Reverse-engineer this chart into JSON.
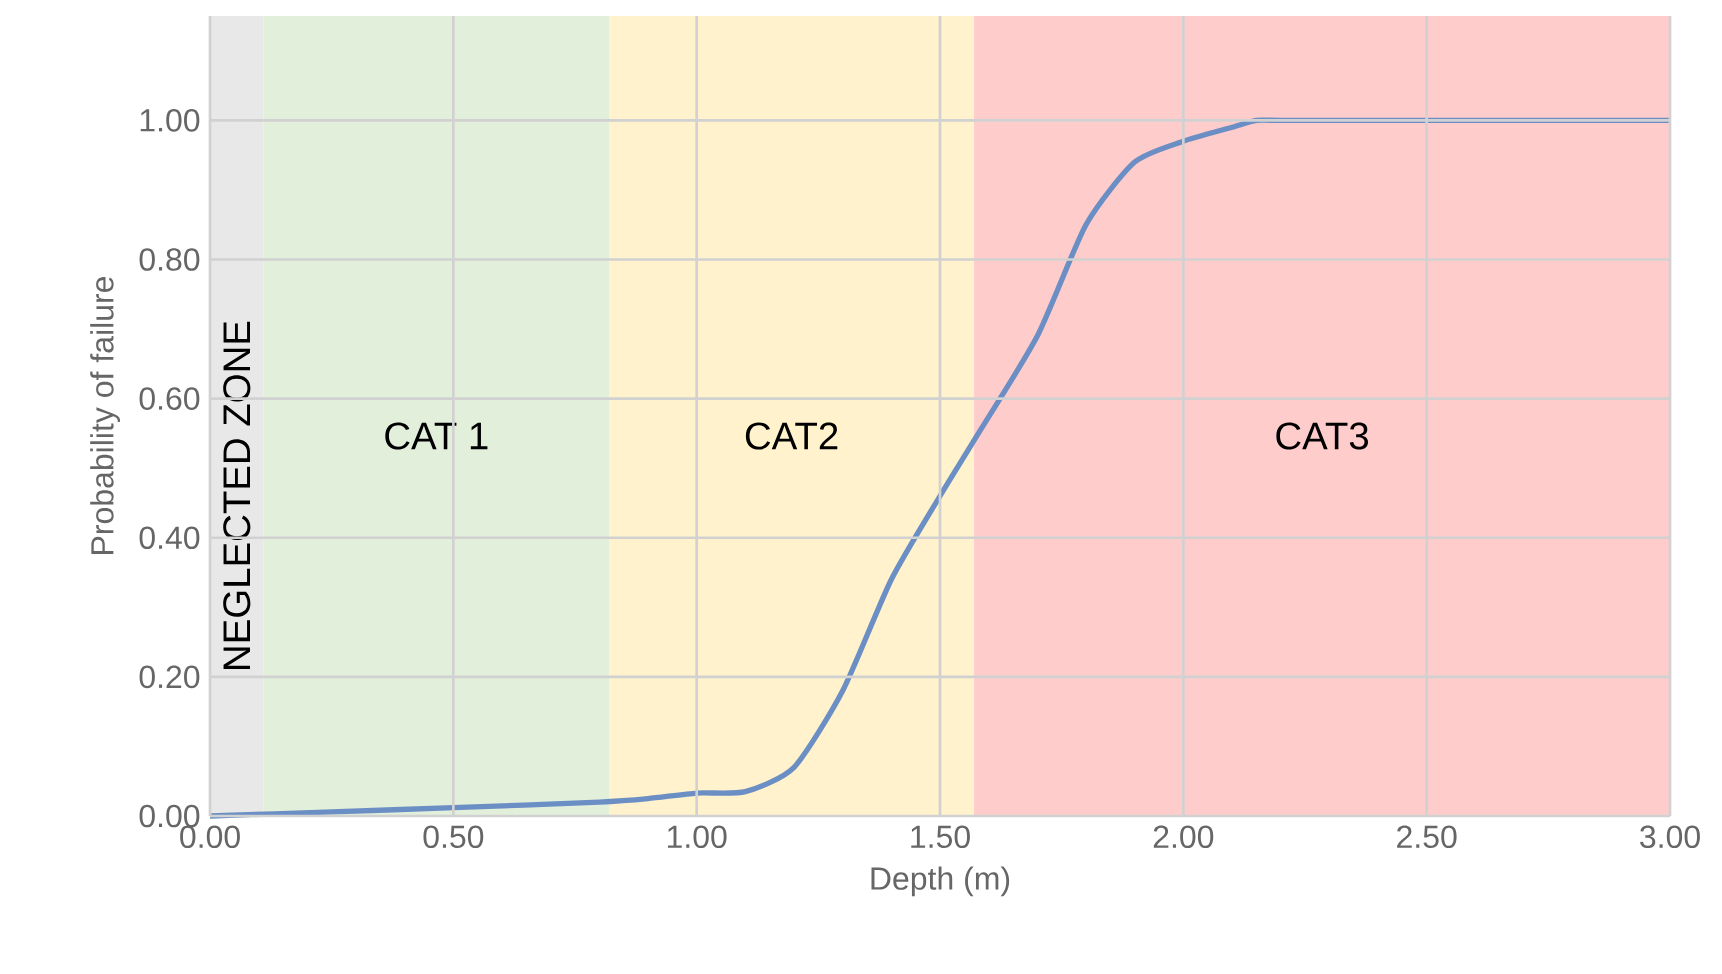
{
  "chart_data": {
    "type": "line",
    "xlabel": "Depth (m)",
    "ylabel": "Probability of failure",
    "xlim": [
      0,
      3
    ],
    "ylim": [
      0,
      1.15
    ],
    "xticks": [
      {
        "value": 0,
        "label": "0.00"
      },
      {
        "value": 0.5,
        "label": "0.50"
      },
      {
        "value": 1,
        "label": "1.00"
      },
      {
        "value": 1.5,
        "label": "1.50"
      },
      {
        "value": 2,
        "label": "2.00"
      },
      {
        "value": 2.5,
        "label": "2.50"
      },
      {
        "value": 3,
        "label": "3.00"
      }
    ],
    "yticks": [
      {
        "value": 0,
        "label": "0.00"
      },
      {
        "value": 0.2,
        "label": "0.20"
      },
      {
        "value": 0.4,
        "label": "0.40"
      },
      {
        "value": 0.6,
        "label": "0.60"
      },
      {
        "value": 0.8,
        "label": "0.80"
      },
      {
        "value": 1,
        "label": "1.00"
      }
    ],
    "grid": true,
    "bands": [
      {
        "axis": "x",
        "from": 0,
        "to": 0.11,
        "label": "NEGLECTED ZONE",
        "color": "#e8e8e8"
      },
      {
        "axis": "x",
        "from": 0.11,
        "to": 0.82,
        "label": "CAT 1",
        "color": "#e2efda"
      },
      {
        "axis": "x",
        "from": 0.82,
        "to": 1.57,
        "label": "CAT2",
        "color": "#fff2cc"
      },
      {
        "axis": "x",
        "from": 1.57,
        "to": 3,
        "label": "CAT3",
        "color": "#ffcccc"
      }
    ],
    "series": [
      {
        "color": "#6b8fc4",
        "x": [
          0,
          0.25,
          0.5,
          0.8,
          0.9,
          1.0,
          1.1,
          1.2,
          1.3,
          1.4,
          1.5,
          1.57,
          1.7,
          1.8,
          1.9,
          2.0,
          2.1,
          2.15,
          2.2,
          2.5,
          3.0
        ],
        "values": [
          0,
          0.006,
          0.012,
          0.02,
          0.025,
          0.033,
          0.035,
          0.07,
          0.18,
          0.34,
          0.46,
          0.54,
          0.69,
          0.85,
          0.94,
          0.97,
          0.99,
          1.0,
          1.0,
          1.0,
          1.0
        ]
      }
    ]
  }
}
